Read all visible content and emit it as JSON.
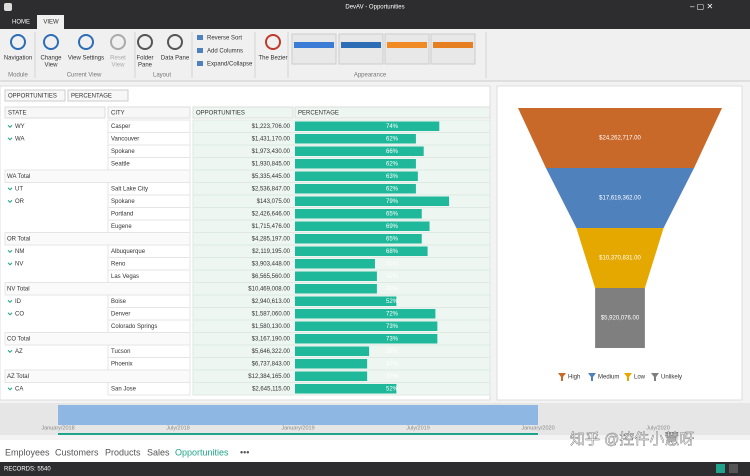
{
  "window": {
    "title": "DevAV - Opportunities"
  },
  "tabs": [
    "HOME",
    "VIEW"
  ],
  "ribbon": {
    "groups": [
      {
        "label": "Module",
        "buttons": [
          [
            "Navigation"
          ]
        ]
      },
      {
        "label": "Current View",
        "buttons": [
          [
            "Change",
            "View"
          ],
          [
            "View Settings"
          ],
          [
            "Reset",
            "View"
          ]
        ]
      },
      {
        "label": "Layout",
        "buttons": [
          [
            "Folder",
            "Pane"
          ],
          [
            "Data Pane"
          ]
        ]
      },
      {
        "small_buttons": [
          "Reverse Sort",
          "Add Columns",
          "Expand/Collapse"
        ]
      },
      {
        "buttons": [
          [
            "The Bezier"
          ]
        ]
      },
      {
        "label": "Appearance"
      }
    ]
  },
  "pivot": {
    "data_fields": [
      "OPPORTUNITIES",
      "PERCENTAGE"
    ],
    "columns": [
      "STATE",
      "CITY",
      "OPPORTUNITIES",
      "PERCENTAGE"
    ],
    "rows": [
      {
        "state": "WY",
        "city": "Casper",
        "opportunities": "$1,223,706.00",
        "percentage": 74,
        "percentage_label": "74%"
      },
      {
        "state": "WA",
        "city": "Vancouver",
        "opportunities": "$1,431,170.00",
        "percentage": 62,
        "percentage_label": "62%"
      },
      {
        "city": "Spokane",
        "opportunities": "$1,973,430.00",
        "percentage": 66,
        "percentage_label": "66%"
      },
      {
        "city": "Seattle",
        "opportunities": "$1,930,845.00",
        "percentage": 62,
        "percentage_label": "62%"
      },
      {
        "total": "WA Total",
        "opportunities": "$5,335,445.00",
        "percentage": 63,
        "percentage_label": "63%"
      },
      {
        "state": "UT",
        "city": "Salt Lake City",
        "opportunities": "$2,536,847.00",
        "percentage": 62,
        "percentage_label": "62%"
      },
      {
        "state": "OR",
        "city": "Spokane",
        "opportunities": "$143,075.00",
        "percentage": 79,
        "percentage_label": "79%"
      },
      {
        "city": "Portland",
        "opportunities": "$2,426,646.00",
        "percentage": 65,
        "percentage_label": "65%"
      },
      {
        "city": "Eugene",
        "opportunities": "$1,715,476.00",
        "percentage": 69,
        "percentage_label": "69%"
      },
      {
        "total": "OR Total",
        "opportunities": "$4,285,197.00",
        "percentage": 65,
        "percentage_label": "65%"
      },
      {
        "state": "NM",
        "city": "Albuquerque",
        "opportunities": "$2,119,195.00",
        "percentage": 68,
        "percentage_label": "68%"
      },
      {
        "state": "NV",
        "city": "Reno",
        "opportunities": "$3,903,448.00",
        "percentage": 41,
        "percentage_label": "41%"
      },
      {
        "city": "Las Vegas",
        "opportunities": "$6,565,560.00",
        "percentage": 42,
        "percentage_label": "42%"
      },
      {
        "total": "NV Total",
        "opportunities": "$10,469,008.00",
        "percentage": 42,
        "percentage_label": "42%"
      },
      {
        "state": "ID",
        "city": "Boise",
        "opportunities": "$2,940,613.00",
        "percentage": 52,
        "percentage_label": "52%"
      },
      {
        "state": "CO",
        "city": "Denver",
        "opportunities": "$1,587,060.00",
        "percentage": 72,
        "percentage_label": "72%"
      },
      {
        "city": "Colorado Springs",
        "opportunities": "$1,580,130.00",
        "percentage": 73,
        "percentage_label": "73%"
      },
      {
        "total": "CO Total",
        "opportunities": "$3,167,190.00",
        "percentage": 73,
        "percentage_label": "73%"
      },
      {
        "state": "AZ",
        "city": "Tucson",
        "opportunities": "$5,646,322.00",
        "percentage": 38,
        "percentage_label": "38%"
      },
      {
        "city": "Phoenix",
        "opportunities": "$6,737,843.00",
        "percentage": 37,
        "percentage_label": "37%"
      },
      {
        "total": "AZ Total",
        "opportunities": "$12,384,165.00",
        "percentage": 37,
        "percentage_label": "37%"
      },
      {
        "state": "CA",
        "city": "San Jose",
        "opportunities": "$2,645,115.00",
        "percentage": 52,
        "percentage_label": "52%"
      }
    ]
  },
  "chart_data": {
    "type": "funnel",
    "categories": [
      "High",
      "Medium",
      "Low",
      "Unlikely"
    ],
    "values": [
      24262717,
      17619362,
      10370831,
      5920076
    ],
    "value_labels": [
      "$24,262,717.00",
      "$17,619,362.00",
      "$10,370,831.00",
      "$5,920,076.00"
    ],
    "colors": [
      "#c8692a",
      "#4f81bd",
      "#e4a800",
      "#7f7f7f"
    ]
  },
  "timeline": {
    "labels": [
      "January/2018",
      "July/2018",
      "January/2019",
      "July/2019",
      "January/2020",
      "July/2020"
    ]
  },
  "navigation": {
    "items": [
      "Employees",
      "Customers",
      "Products",
      "Sales",
      "Opportunities",
      "•••"
    ],
    "selected": 4
  },
  "status": {
    "records": "RECORDS: 5540"
  },
  "watermark": "知乎 @控件小慧呀"
}
